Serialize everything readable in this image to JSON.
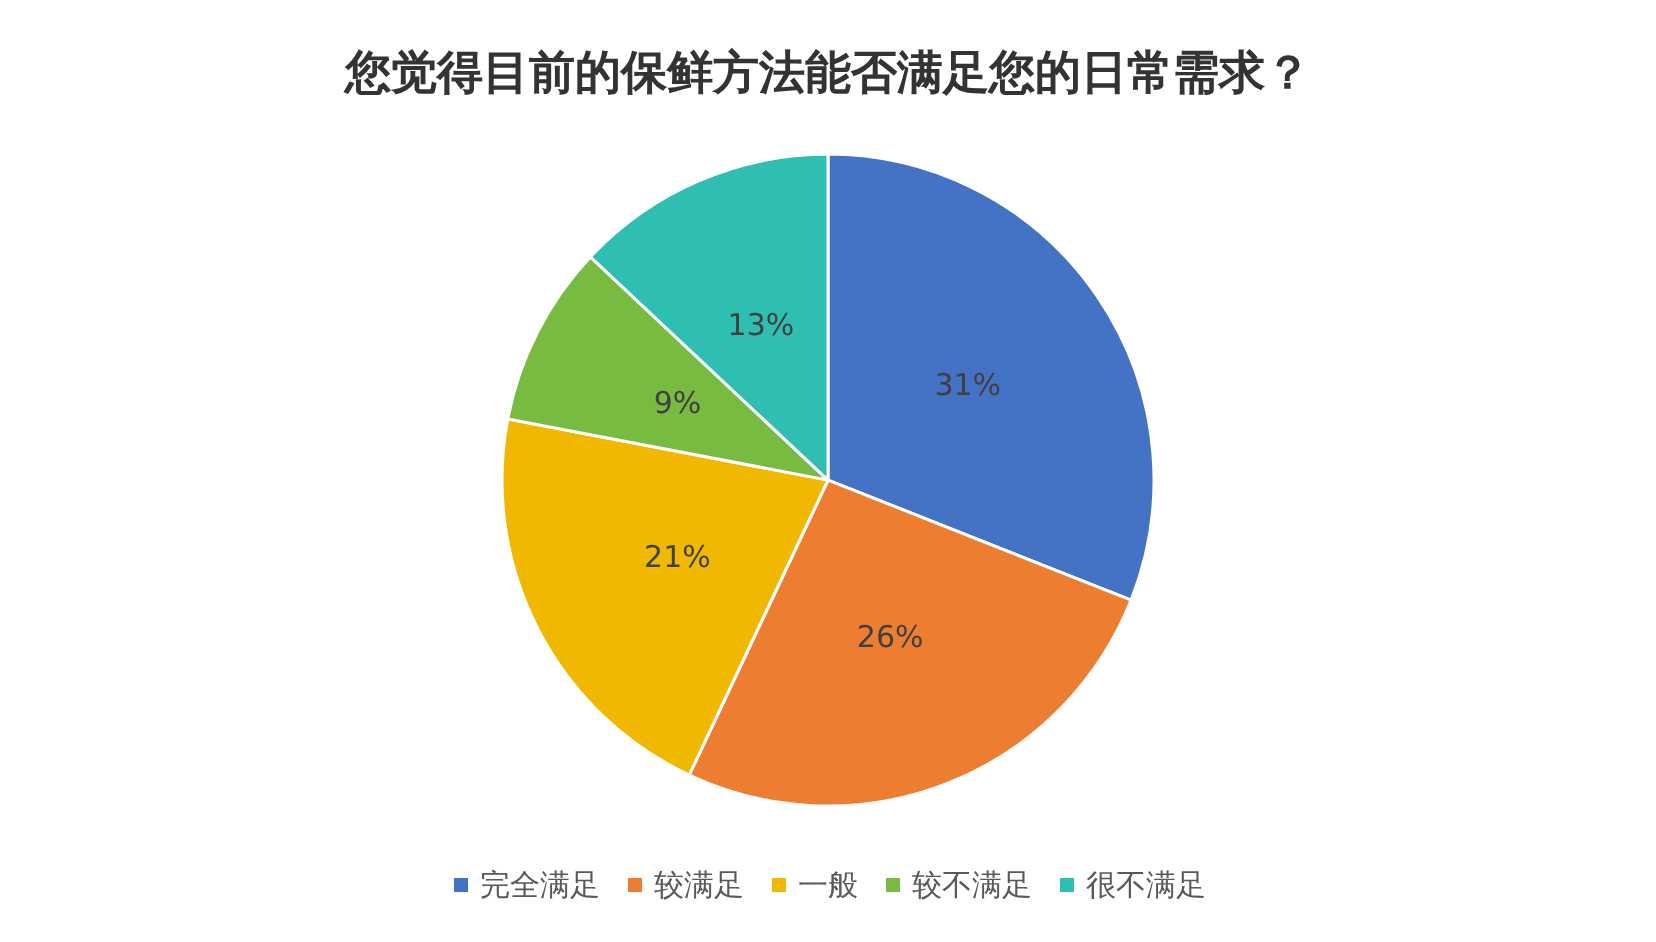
{
  "chart_data": {
    "type": "pie",
    "title": "您觉得目前的保鲜方法能否满足您的日常需求？",
    "categories": [
      "完全满足",
      "较满足",
      "一般",
      "较不满足",
      "很不满足"
    ],
    "values": [
      31,
      26,
      21,
      9,
      13
    ],
    "value_labels": [
      "31%",
      "26%",
      "21%",
      "9%",
      "13%"
    ],
    "colors": [
      "#4472c4",
      "#ed7d31",
      "#f0b800",
      "#77bb41",
      "#2fbfb2"
    ],
    "legend": "bottom"
  }
}
